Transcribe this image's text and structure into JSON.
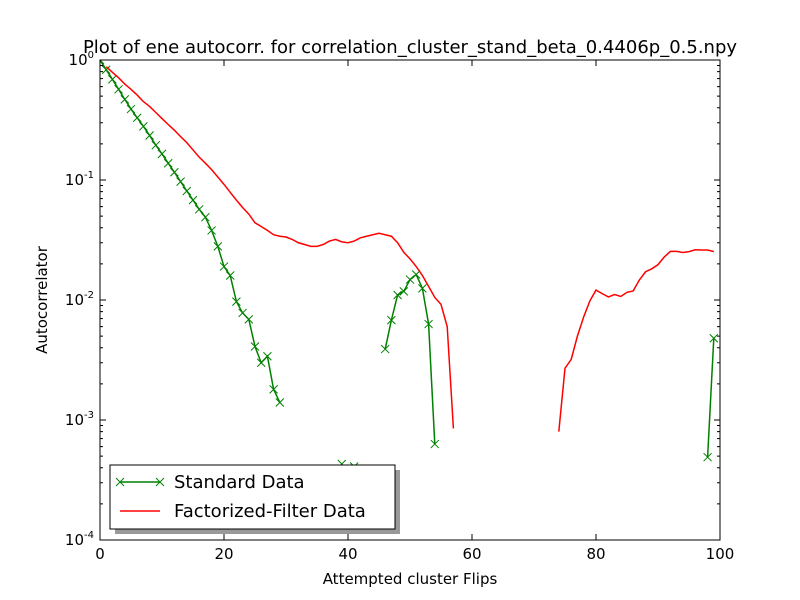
{
  "chart_data": {
    "type": "line",
    "title": "Plot of ene autocorr. for correlation_cluster_stand_beta_0.4406p_0.5.npy",
    "xlabel": "Attempted cluster Flips",
    "ylabel": "Autocorrelator",
    "xlim": [
      0,
      100
    ],
    "ylim": [
      0.0001,
      1
    ],
    "yscale": "log",
    "grid": false,
    "legend_position": "lower-left",
    "x_ticks": [
      {
        "value": 0,
        "label": "0"
      },
      {
        "value": 20,
        "label": "20"
      },
      {
        "value": 40,
        "label": "40"
      },
      {
        "value": 60,
        "label": "60"
      },
      {
        "value": 80,
        "label": "80"
      },
      {
        "value": 100,
        "label": "100"
      }
    ],
    "y_ticks": [
      {
        "value": 1,
        "base": "10",
        "exp": "0"
      },
      {
        "value": 0.1,
        "base": "10",
        "exp": "-1"
      },
      {
        "value": 0.01,
        "base": "10",
        "exp": "-2"
      },
      {
        "value": 0.001,
        "base": "10",
        "exp": "-3"
      },
      {
        "value": 0.0001,
        "base": "10",
        "exp": "-4"
      }
    ],
    "series": [
      {
        "name": "Standard Data",
        "color": "#008000",
        "marker": "x",
        "segments": [
          [
            [
              0,
              1.0
            ],
            [
              1,
              0.83
            ],
            [
              2,
              0.69
            ],
            [
              3,
              0.57
            ],
            [
              4,
              0.47
            ],
            [
              5,
              0.39
            ],
            [
              6,
              0.33
            ],
            [
              7,
              0.28
            ],
            [
              8,
              0.235
            ],
            [
              9,
              0.195
            ],
            [
              10,
              0.165
            ],
            [
              11,
              0.138
            ],
            [
              12,
              0.116
            ],
            [
              13,
              0.097
            ],
            [
              14,
              0.081
            ],
            [
              15,
              0.068
            ],
            [
              16,
              0.057
            ],
            [
              17,
              0.049
            ],
            [
              18,
              0.038
            ],
            [
              19,
              0.028
            ],
            [
              20,
              0.019
            ],
            [
              21,
              0.016
            ],
            [
              22,
              0.0097
            ],
            [
              23,
              0.0078
            ],
            [
              24,
              0.0069
            ],
            [
              25,
              0.0041
            ],
            [
              26,
              0.003
            ],
            [
              27,
              0.0034
            ],
            [
              28,
              0.0018
            ],
            [
              29,
              0.0014
            ]
          ],
          [
            [
              39,
              0.00043
            ]
          ],
          [
            [
              41,
              0.00041
            ]
          ],
          [
            [
              46,
              0.0039
            ],
            [
              47,
              0.0068
            ],
            [
              48,
              0.011
            ],
            [
              49,
              0.0118
            ],
            [
              50,
              0.0148
            ],
            [
              51,
              0.0163
            ],
            [
              52,
              0.0125
            ],
            [
              53,
              0.0063
            ],
            [
              54,
              0.00063
            ]
          ],
          [
            [
              98,
              0.00049
            ],
            [
              99,
              0.0048
            ]
          ]
        ]
      },
      {
        "name": "Factorized-Filter Data",
        "color": "#ff0000",
        "marker": "none",
        "segments": [
          [
            [
              1,
              0.88
            ],
            [
              2,
              0.79
            ],
            [
              3,
              0.71
            ],
            [
              4,
              0.63
            ],
            [
              5,
              0.57
            ],
            [
              6,
              0.51
            ],
            [
              7,
              0.45
            ],
            [
              8,
              0.41
            ],
            [
              9,
              0.365
            ],
            [
              10,
              0.325
            ],
            [
              11,
              0.29
            ],
            [
              12,
              0.26
            ],
            [
              13,
              0.23
            ],
            [
              14,
              0.205
            ],
            [
              15,
              0.178
            ],
            [
              16,
              0.155
            ],
            [
              17,
              0.138
            ],
            [
              18,
              0.122
            ],
            [
              19,
              0.106
            ],
            [
              20,
              0.092
            ],
            [
              21,
              0.079
            ],
            [
              22,
              0.068
            ],
            [
              23,
              0.059
            ],
            [
              24,
              0.052
            ],
            [
              25,
              0.044
            ],
            [
              26,
              0.041
            ],
            [
              27,
              0.038
            ],
            [
              28,
              0.035
            ],
            [
              29,
              0.034
            ],
            [
              30,
              0.0335
            ],
            [
              31,
              0.032
            ],
            [
              32,
              0.03
            ],
            [
              33,
              0.029
            ],
            [
              34,
              0.028
            ],
            [
              35,
              0.028
            ],
            [
              36,
              0.029
            ],
            [
              37,
              0.031
            ],
            [
              38,
              0.032
            ],
            [
              39,
              0.0305
            ],
            [
              40,
              0.03
            ],
            [
              41,
              0.031
            ],
            [
              42,
              0.033
            ],
            [
              43,
              0.034
            ],
            [
              44,
              0.035
            ],
            [
              45,
              0.036
            ],
            [
              46,
              0.035
            ],
            [
              47,
              0.034
            ],
            [
              48,
              0.03
            ],
            [
              49,
              0.025
            ],
            [
              50,
              0.022
            ],
            [
              51,
              0.019
            ],
            [
              52,
              0.016
            ],
            [
              53,
              0.013
            ],
            [
              54,
              0.0105
            ],
            [
              55,
              0.0092
            ],
            [
              56,
              0.006
            ],
            [
              57,
              0.00085
            ]
          ],
          [
            [
              74,
              0.0008
            ],
            [
              75,
              0.0027
            ],
            [
              76,
              0.0032
            ],
            [
              77,
              0.005
            ],
            [
              78,
              0.0072
            ],
            [
              79,
              0.0098
            ],
            [
              80,
              0.0121
            ],
            [
              81,
              0.0113
            ],
            [
              82,
              0.0106
            ],
            [
              83,
              0.0111
            ],
            [
              84,
              0.0107
            ],
            [
              85,
              0.0116
            ],
            [
              86,
              0.0119
            ],
            [
              87,
              0.0147
            ],
            [
              88,
              0.0172
            ],
            [
              89,
              0.0182
            ],
            [
              90,
              0.0197
            ],
            [
              91,
              0.0228
            ],
            [
              92,
              0.0254
            ],
            [
              93,
              0.0254
            ],
            [
              94,
              0.0249
            ],
            [
              95,
              0.0253
            ],
            [
              96,
              0.0262
            ],
            [
              97,
              0.0261
            ],
            [
              98,
              0.0261
            ],
            [
              99,
              0.0253
            ]
          ]
        ]
      }
    ]
  }
}
